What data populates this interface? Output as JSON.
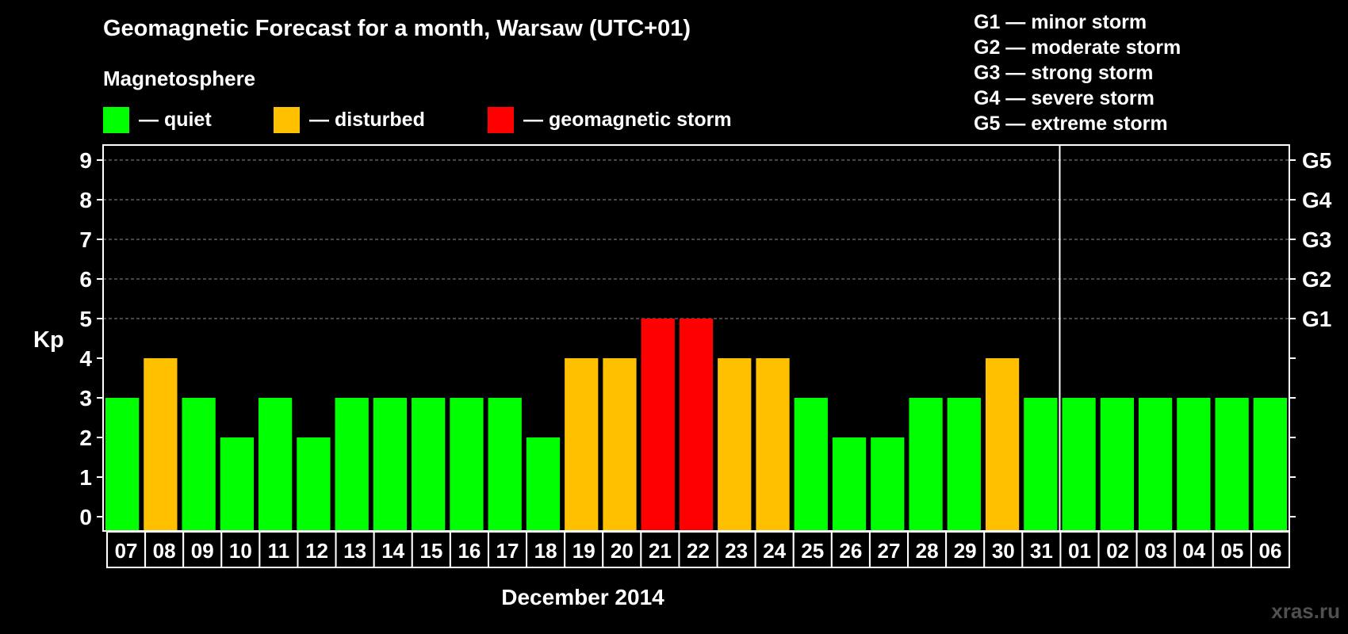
{
  "title": "Geomagnetic Forecast for a month, Warsaw (UTC+01)",
  "legend": {
    "heading": "Magnetosphere",
    "items": [
      {
        "label": "— quiet",
        "color": "#00ff00"
      },
      {
        "label": "— disturbed",
        "color": "#ffc000"
      },
      {
        "label": "— geomagnetic storm",
        "color": "#ff0000"
      }
    ]
  },
  "storm_levels": [
    "G1 — minor storm",
    "G2 — moderate storm",
    "G3 — strong storm",
    "G4 — severe storm",
    "G5 — extreme storm"
  ],
  "watermark": "xras.ru",
  "chart_data": {
    "type": "bar",
    "title": "Geomagnetic Forecast for a month, Warsaw (UTC+01)",
    "xlabel": "December 2014",
    "ylabel": "Kp",
    "ylim": [
      0,
      9
    ],
    "yticks": [
      "0",
      "1",
      "2",
      "3",
      "4",
      "5",
      "6",
      "7",
      "8",
      "9"
    ],
    "right_axis_labels": [
      {
        "value": 5,
        "label": "G1"
      },
      {
        "value": 6,
        "label": "G2"
      },
      {
        "value": 7,
        "label": "G3"
      },
      {
        "value": 8,
        "label": "G4"
      },
      {
        "value": 9,
        "label": "G5"
      }
    ],
    "grid": "horizontal dashed",
    "month_divider_after_category": "31",
    "categories": [
      "07",
      "08",
      "09",
      "10",
      "11",
      "12",
      "13",
      "14",
      "15",
      "16",
      "17",
      "18",
      "19",
      "20",
      "21",
      "22",
      "23",
      "24",
      "25",
      "26",
      "27",
      "28",
      "29",
      "30",
      "31",
      "01",
      "02",
      "03",
      "04",
      "05",
      "06"
    ],
    "values": [
      3,
      4,
      3,
      2,
      3,
      2,
      3,
      3,
      3,
      3,
      3,
      2,
      4,
      4,
      5,
      5,
      4,
      4,
      3,
      2,
      2,
      3,
      3,
      4,
      3,
      3,
      3,
      3,
      3,
      3,
      3
    ],
    "color_rule": {
      "quiet": "#00ff00",
      "disturbed": "#ffc000",
      "storm": "#ff0000"
    }
  }
}
